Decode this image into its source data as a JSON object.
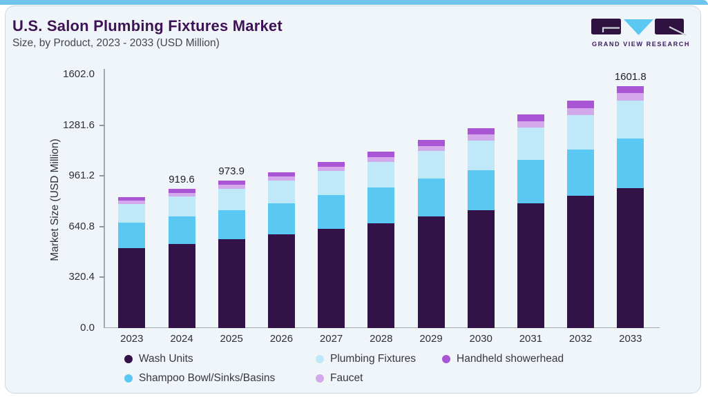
{
  "header": {
    "title": "U.S. Salon Plumbing Fixtures Market",
    "subtitle": "Size, by Product, 2023 - 2033 (USD Million)"
  },
  "logo": {
    "text": "GRAND VIEW RESEARCH"
  },
  "colors": {
    "accent_bar": "#70c5ee",
    "title_text": "#3e1356",
    "logo_dark": "#2f1240",
    "logo_blue": "#5bc8f2"
  },
  "chart_data": {
    "type": "stacked-bar",
    "title": "U.S. Salon Plumbing Fixtures Market",
    "subtitle": "Size, by Product, 2023 - 2033 (USD Million)",
    "ylabel": "Market Size (USD Million)",
    "xlabel": "",
    "grid": false,
    "legend_position": "bottom",
    "ylim": [
      0,
      1602.0
    ],
    "y_ticks": [
      "0.0",
      "320.4",
      "640.8",
      "961.2",
      "1281.6",
      "1602.0"
    ],
    "categories": [
      "2023",
      "2024",
      "2025",
      "2026",
      "2027",
      "2028",
      "2029",
      "2030",
      "2031",
      "2032",
      "2033"
    ],
    "bar_labels": [
      "",
      "919.6",
      "973.9",
      "",
      "",
      "",
      "",
      "",
      "",
      "",
      "1601.8"
    ],
    "totals": [
      867.4,
      919.6,
      973.9,
      1032.0,
      1100.0,
      1166.0,
      1245.0,
      1321.0,
      1412.0,
      1502.0,
      1601.8
    ],
    "series": [
      {
        "id": "wash-units",
        "name": "Wash Units",
        "color": "#331248",
        "values": [
          528.0,
          557.6,
          588.0,
          620.0,
          658.0,
          694.5,
          737.5,
          778.0,
          827.0,
          875.0,
          925.7
        ]
      },
      {
        "id": "shampoo-bowl-sinks-basins",
        "name": "Shampoo Bowl/Sinks/Basins",
        "color": "#5bc8f4",
        "values": [
          170.0,
          181.0,
          192.5,
          205.0,
          219.5,
          234.0,
          250.5,
          267.5,
          287.0,
          306.5,
          327.0
        ]
      },
      {
        "id": "plumbing-fixtures",
        "name": "Plumbing Fixtures",
        "color": "#bfe8f8",
        "values": [
          124.0,
          131.0,
          139.4,
          149.0,
          159.5,
          170.5,
          183.0,
          196.5,
          211.5,
          227.0,
          252.1
        ]
      },
      {
        "id": "faucet",
        "name": "Faucet",
        "color": "#d4a9ec",
        "values": [
          22.7,
          24.5,
          26.0,
          27.5,
          29.5,
          31.5,
          34.5,
          37.0,
          41.0,
          45.0,
          48.0
        ]
      },
      {
        "id": "handheld-showerhead",
        "name": "Handheld showerhead",
        "color": "#a855d6",
        "values": [
          22.7,
          25.5,
          28.0,
          30.5,
          33.5,
          35.5,
          39.5,
          42.0,
          45.5,
          48.5,
          49.0
        ]
      }
    ],
    "legend_order": [
      "wash-units",
      "plumbing-fixtures",
      "handheld-showerhead",
      "shampoo-bowl-sinks-basins",
      "faucet"
    ]
  }
}
